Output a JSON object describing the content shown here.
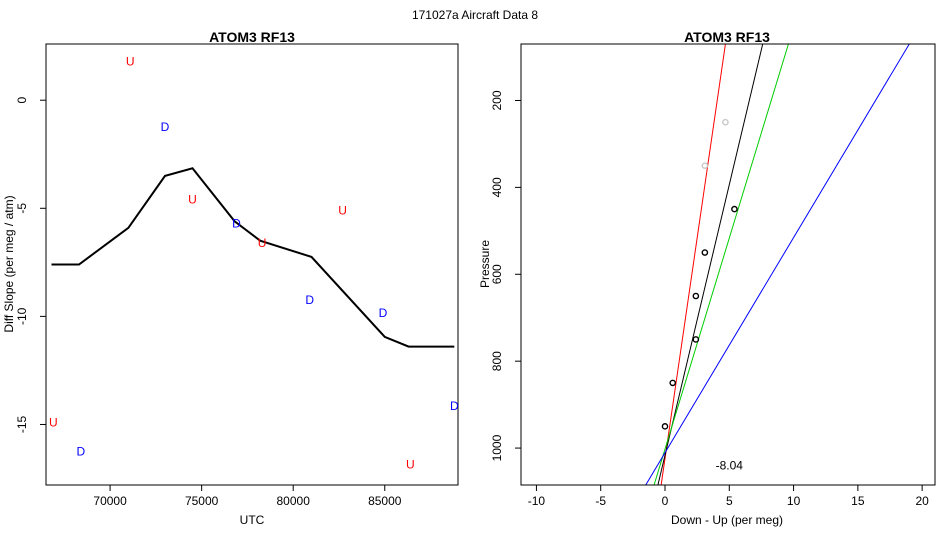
{
  "suptitle": "171027a   Aircraft Data 8",
  "chart_data": [
    {
      "type": "scatter",
      "title": "ATOM3 RF13",
      "xlabel": "UTC",
      "ylabel": "Diff Slope (per meg / atm)",
      "xlim": [
        66500,
        89000
      ],
      "ylim": [
        -17.8,
        2.6
      ],
      "xticks": [
        70000,
        75000,
        80000,
        85000
      ],
      "yticks": [
        0,
        -5,
        -10,
        -15
      ],
      "line": {
        "name": "",
        "color": "#000000",
        "points": [
          [
            66800,
            -7.6
          ],
          [
            68300,
            -7.6
          ],
          [
            71000,
            -5.9
          ],
          [
            73000,
            -3.5
          ],
          [
            74500,
            -3.15
          ],
          [
            76800,
            -5.6
          ],
          [
            78200,
            -6.5
          ],
          [
            81000,
            -7.25
          ],
          [
            85000,
            -10.95
          ],
          [
            86300,
            -11.4
          ],
          [
            88800,
            -11.4
          ]
        ]
      },
      "markers": [
        {
          "label": "U",
          "x": 71100,
          "y": 1.8,
          "color": "#ff0000"
        },
        {
          "label": "D",
          "x": 73000,
          "y": -1.25,
          "color": "#0000ff"
        },
        {
          "label": "U",
          "x": 74500,
          "y": -4.6,
          "color": "#ff0000"
        },
        {
          "label": "D",
          "x": 76900,
          "y": -5.7,
          "color": "#0000ff"
        },
        {
          "label": "U",
          "x": 78300,
          "y": -6.6,
          "color": "#ff0000"
        },
        {
          "label": "U",
          "x": 82700,
          "y": -5.1,
          "color": "#ff0000"
        },
        {
          "label": "D",
          "x": 80900,
          "y": -9.25,
          "color": "#0000ff"
        },
        {
          "label": "D",
          "x": 84900,
          "y": -9.85,
          "color": "#0000ff"
        },
        {
          "label": "U",
          "x": 66900,
          "y": -14.9,
          "color": "#ff0000"
        },
        {
          "label": "D",
          "x": 68400,
          "y": -16.25,
          "color": "#0000ff"
        },
        {
          "label": "U",
          "x": 86400,
          "y": -16.85,
          "color": "#ff0000"
        },
        {
          "label": "D",
          "x": 88800,
          "y": -14.15,
          "color": "#0000ff"
        }
      ]
    },
    {
      "type": "scatter",
      "title": "ATOM3 RF13",
      "xlabel": "Down - Up (per meg)",
      "ylabel": "Pressure",
      "xlim": [
        -11.2,
        21.0
      ],
      "ylim_reversed": [
        1085,
        70
      ],
      "xticks": [
        -10,
        -5,
        0,
        5,
        10,
        15,
        20
      ],
      "yticks": [
        200,
        400,
        600,
        800,
        1000
      ],
      "points": [
        {
          "x": 0.0,
          "y": 950,
          "color": "#000000"
        },
        {
          "x": 0.6,
          "y": 850,
          "color": "#000000"
        },
        {
          "x": 2.4,
          "y": 750,
          "color": "#000000"
        },
        {
          "x": 2.4,
          "y": 650,
          "color": "#000000"
        },
        {
          "x": 3.1,
          "y": 550,
          "color": "#000000"
        },
        {
          "x": 5.4,
          "y": 450,
          "color": "#000000"
        },
        {
          "x": 3.1,
          "y": 350,
          "color": "#c8c8c8"
        },
        {
          "x": 4.7,
          "y": 250,
          "color": "#c8c8c8"
        }
      ],
      "fit_lines": [
        {
          "color": "#ff0000",
          "x0": -0.3,
          "y0": 1085,
          "x1": 4.7,
          "y1": 70
        },
        {
          "color": "#000000",
          "x0": -0.55,
          "y0": 1085,
          "x1": 7.6,
          "y1": 70
        },
        {
          "color": "#00cc00",
          "x0": -0.85,
          "y0": 1085,
          "x1": 9.6,
          "y1": 70
        },
        {
          "color": "#0000ff",
          "x0": -1.5,
          "y0": 1085,
          "x1": 19.0,
          "y1": 70
        }
      ],
      "annotation": {
        "text": "-8.04",
        "x": 5.0,
        "y": 1040
      }
    }
  ]
}
